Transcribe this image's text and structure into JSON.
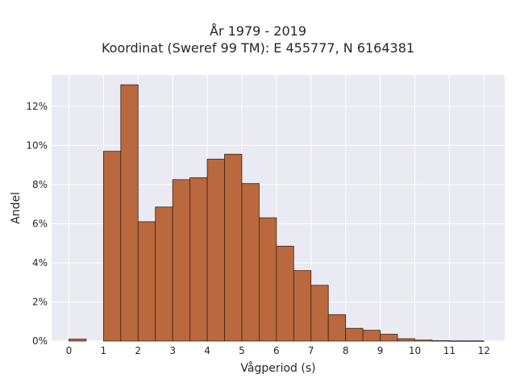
{
  "chart_data": {
    "type": "bar",
    "title": "År 1979 - 2019",
    "subtitle": "Koordinat (Sweref 99 TM): E 455777, N 6164381",
    "xlabel": "Vågperiod (s)",
    "ylabel": "Andel",
    "xlim": [
      -0.5,
      12.6
    ],
    "ylim": [
      0,
      13.6
    ],
    "x_ticks": [
      0,
      1,
      2,
      3,
      4,
      5,
      6,
      7,
      8,
      9,
      10,
      11,
      12
    ],
    "x_tick_labels": [
      "0",
      "1",
      "2",
      "3",
      "4",
      "5",
      "6",
      "7",
      "8",
      "9",
      "10",
      "11",
      "12"
    ],
    "y_ticks": [
      0,
      2,
      4,
      6,
      8,
      10,
      12
    ],
    "y_tick_labels": [
      "0%",
      "2%",
      "4%",
      "6%",
      "8%",
      "10%",
      "12%"
    ],
    "bin_edges": [
      0,
      0.5,
      1,
      1.5,
      2,
      2.5,
      3,
      3.5,
      4,
      4.5,
      5,
      5.5,
      6,
      6.5,
      7,
      7.5,
      8,
      8.5,
      9,
      9.5,
      10,
      10.5,
      11,
      11.5,
      12
    ],
    "values": [
      0.1,
      0.0,
      9.7,
      13.1,
      6.1,
      6.85,
      8.25,
      8.35,
      9.3,
      9.55,
      8.05,
      6.3,
      4.85,
      3.6,
      2.85,
      1.35,
      0.65,
      0.55,
      0.35,
      0.12,
      0.05,
      0.02,
      0.01,
      0.01
    ],
    "unit": "%",
    "grid": true,
    "colors": {
      "bar_fill": "#b9693d",
      "bar_stroke": "#3a2418",
      "plot_background": "#eaeaf2",
      "grid": "#ffffff",
      "text": "#262626"
    }
  }
}
